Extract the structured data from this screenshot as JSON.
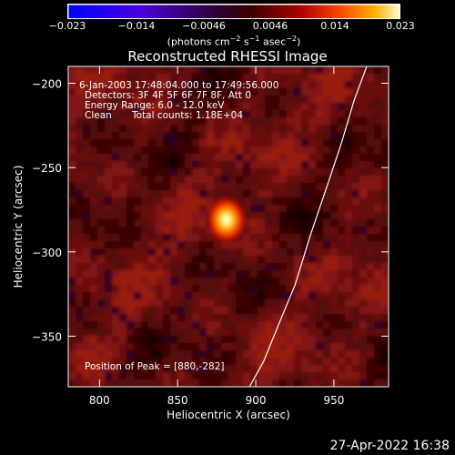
{
  "colorbar": {
    "ticks": [
      "−0.023",
      "−0.014",
      "−0.0046",
      "0.0046",
      "0.014",
      "0.023"
    ],
    "unit_prefix": "(photons cm",
    "unit_exp1": "−2",
    "unit_mid1": " s",
    "unit_exp2": "−1",
    "unit_mid2": " asec",
    "unit_exp3": "−2",
    "unit_suffix": ")"
  },
  "annotations": {
    "time_range": "6-Jan-2003 17:48:04.000 to 17:49:56.000",
    "detectors": "Detectors: 3F 4F 5F 6F 7F 8F, Att 0",
    "energy": "Energy Range: 6.0 - 12.0 keV",
    "method": "Clean",
    "counts": "Total counts: 1.18E+04",
    "peak": "Position of Peak = [880,-282]"
  },
  "footer": {
    "date": "27-Apr-2022 16:38"
  },
  "chart_data": {
    "type": "heatmap",
    "title": "Reconstructed RHESSI Image",
    "xlabel": "Heliocentric X (arcsec)",
    "ylabel": "Heliocentric Y (arcsec)",
    "xlim": [
      780,
      985
    ],
    "ylim": [
      -380,
      -190
    ],
    "xticks": [
      800,
      850,
      900,
      950
    ],
    "yticks": [
      -200,
      -250,
      -300,
      -350
    ],
    "xtick_labels": [
      "800",
      "850",
      "900",
      "950"
    ],
    "ytick_labels": [
      "−200",
      "−250",
      "−300",
      "−350"
    ],
    "colorbar_range": [
      -0.023,
      0.023
    ],
    "colormap": "hot-diverging",
    "peak": {
      "x": 880,
      "y": -282
    },
    "limb": {
      "x": [
        971,
        963,
        955,
        946,
        935,
        925,
        916,
        905,
        896
      ],
      "y": [
        -190,
        -210,
        -235,
        -260,
        -290,
        -320,
        -340,
        -365,
        -380
      ]
    }
  }
}
